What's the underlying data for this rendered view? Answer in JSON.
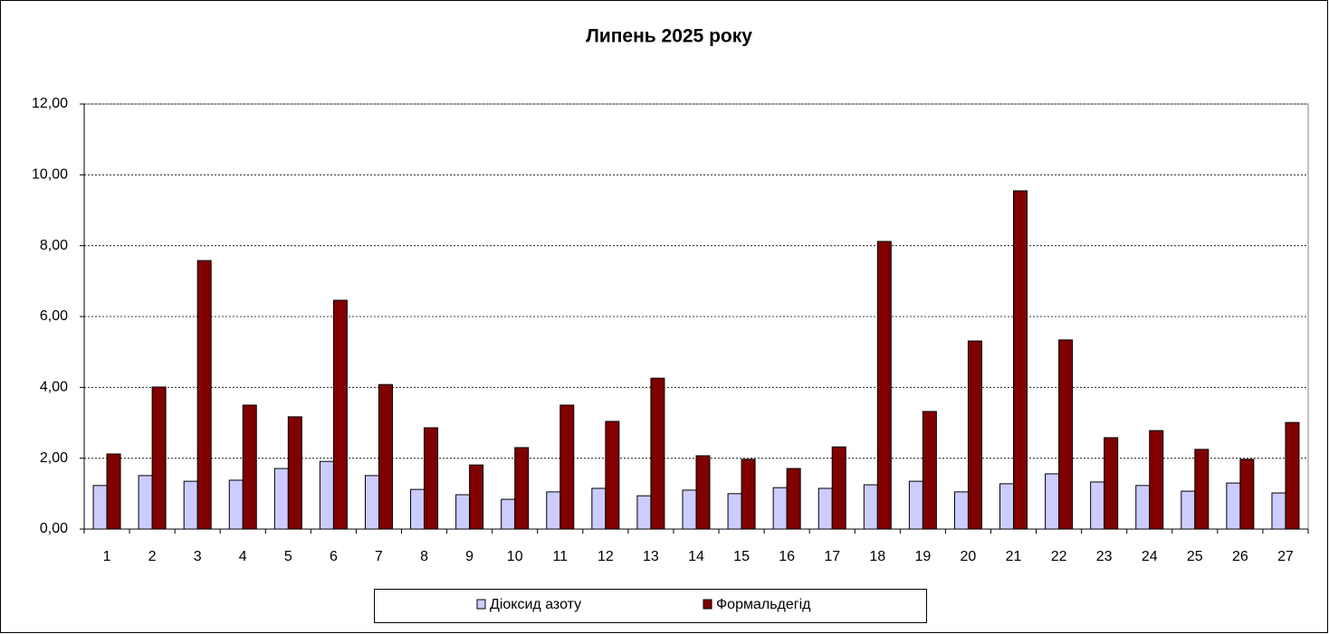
{
  "chart_data": {
    "type": "bar",
    "title": "Липень 2025 року",
    "categories": [
      "1",
      "2",
      "3",
      "4",
      "5",
      "6",
      "7",
      "8",
      "9",
      "10",
      "11",
      "12",
      "13",
      "14",
      "15",
      "16",
      "17",
      "18",
      "19",
      "20",
      "21",
      "22",
      "23",
      "24",
      "25",
      "26",
      "27"
    ],
    "series": [
      {
        "name": "Діоксид азоту",
        "color": "#ccccff",
        "values": [
          1.23,
          1.51,
          1.35,
          1.38,
          1.71,
          1.91,
          1.51,
          1.12,
          0.97,
          0.84,
          1.05,
          1.15,
          0.94,
          1.1,
          1.0,
          1.17,
          1.15,
          1.25,
          1.35,
          1.05,
          1.28,
          1.56,
          1.33,
          1.23,
          1.07,
          1.3,
          1.02
        ]
      },
      {
        "name": "Формальдегід",
        "color": "#800000",
        "values": [
          2.12,
          4.01,
          7.58,
          3.5,
          3.17,
          6.46,
          4.08,
          2.86,
          1.81,
          2.3,
          3.5,
          3.04,
          4.26,
          2.07,
          1.97,
          1.71,
          2.32,
          8.12,
          3.32,
          5.31,
          9.55,
          5.34,
          2.58,
          2.78,
          2.25,
          1.97,
          3.01
        ]
      }
    ],
    "ylim": [
      0,
      12
    ],
    "yticks": [
      {
        "value": 0,
        "label": "0,00"
      },
      {
        "value": 2,
        "label": "2,00"
      },
      {
        "value": 4,
        "label": "4,00"
      },
      {
        "value": 6,
        "label": "6,00"
      },
      {
        "value": 8,
        "label": "8,00"
      },
      {
        "value": 10,
        "label": "10,00"
      },
      {
        "value": 12,
        "label": "12,00"
      }
    ],
    "grid": true,
    "legend": "bottom"
  }
}
